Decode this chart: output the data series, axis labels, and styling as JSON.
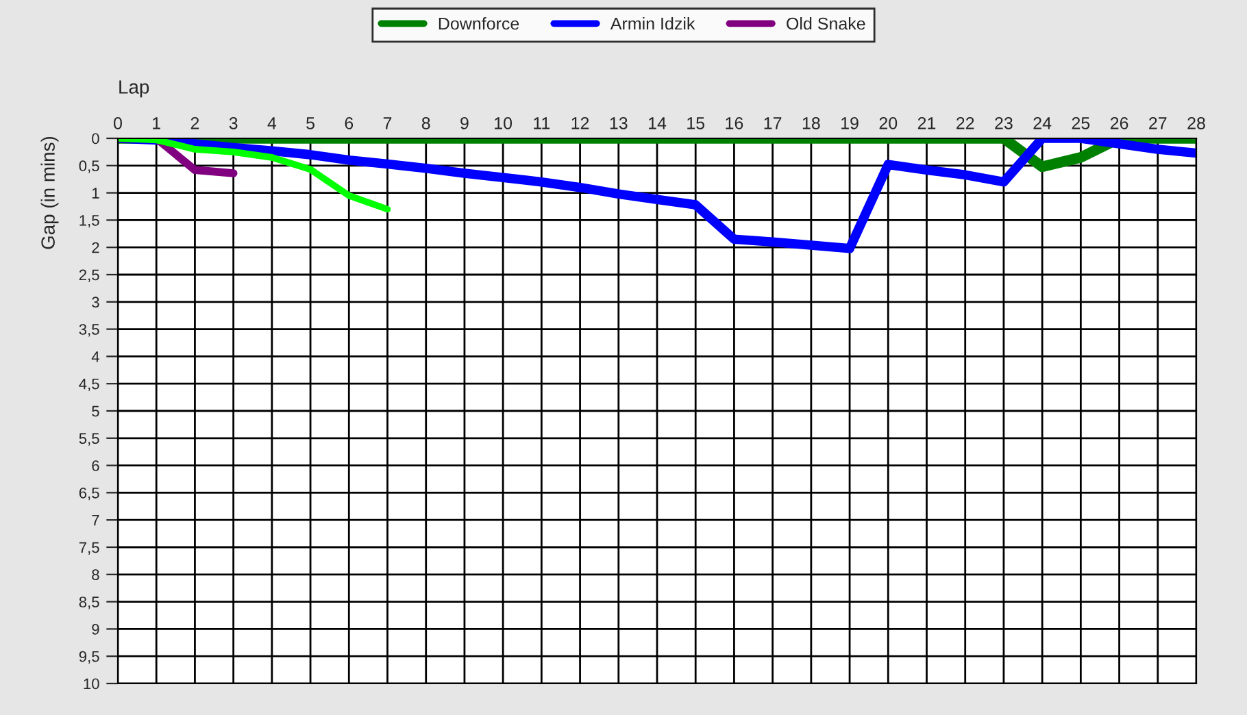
{
  "chart_data": {
    "type": "line",
    "xlabel": "Lap",
    "ylabel": "Gap (in mins)",
    "x": [
      0,
      1,
      2,
      3,
      4,
      5,
      6,
      7,
      8,
      9,
      10,
      11,
      12,
      13,
      14,
      15,
      16,
      17,
      18,
      19,
      20,
      21,
      22,
      23,
      24,
      25,
      26,
      27,
      28
    ],
    "series": [
      {
        "name": "Downforce",
        "color": "#008000",
        "values": [
          0,
          0,
          0,
          0,
          0,
          0,
          0,
          0,
          0,
          0,
          0,
          0,
          0,
          0,
          0,
          0,
          0,
          0,
          0,
          0,
          0,
          0,
          0,
          0,
          0.52,
          0.35,
          0,
          0,
          0
        ]
      },
      {
        "name": "Armin Idzik",
        "color": "#0000ff",
        "values": [
          0,
          0.03,
          0.1,
          0.17,
          0.23,
          0.3,
          0.4,
          0.47,
          0.55,
          0.64,
          0.72,
          0.8,
          0.9,
          1.02,
          1.12,
          1.22,
          1.85,
          1.9,
          1.96,
          2.02,
          0.48,
          0.58,
          0.67,
          0.8,
          0,
          0,
          0.1,
          0.2,
          0.27
        ]
      },
      {
        "name": "Old Snake",
        "color": "#800080",
        "x": [
          0,
          1,
          2,
          3
        ],
        "values": [
          0,
          0,
          0.58,
          0.64
        ]
      },
      {
        "color": "#00ff00",
        "x": [
          0,
          1,
          2,
          3,
          4,
          5,
          6,
          7
        ],
        "values": [
          0,
          0.03,
          0.2,
          0.25,
          0.35,
          0.57,
          1.05,
          1.3
        ]
      }
    ],
    "xlim": [
      0,
      28
    ],
    "xticks": [
      0,
      1,
      2,
      3,
      4,
      5,
      6,
      7,
      8,
      9,
      10,
      11,
      12,
      13,
      14,
      15,
      16,
      17,
      18,
      19,
      20,
      21,
      22,
      23,
      24,
      25,
      26,
      27,
      28
    ],
    "ylim": [
      10,
      0
    ],
    "yticks": [
      0,
      {
        "value": 0.5,
        "label": "0,5"
      },
      1,
      {
        "value": 1.5,
        "label": "1,5"
      },
      2,
      {
        "value": 2.5,
        "label": "2,5"
      },
      3,
      {
        "value": 3.5,
        "label": "3,5"
      },
      4,
      {
        "value": 4.5,
        "label": "4,5"
      },
      5,
      {
        "value": 5.5,
        "label": "5,5"
      },
      6,
      {
        "value": 6.5,
        "label": "6,5"
      },
      7,
      {
        "value": 7.5,
        "label": "7,5"
      },
      8,
      {
        "value": 8.5,
        "label": "8,5"
      },
      9,
      {
        "value": 9.5,
        "label": "9,5"
      },
      10
    ],
    "grid": true,
    "legend": "top",
    "marker": "none",
    "line_style": "solid"
  }
}
